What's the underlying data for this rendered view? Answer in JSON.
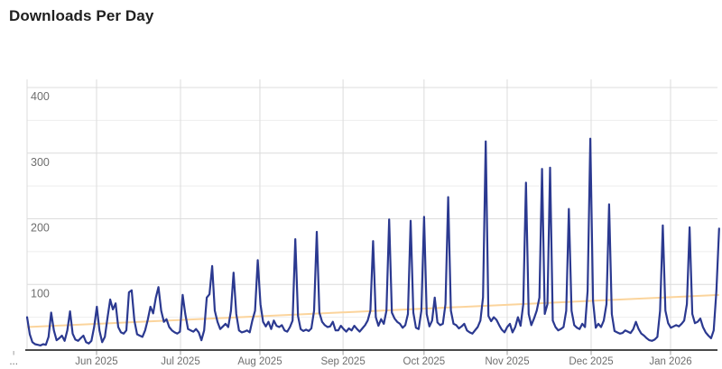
{
  "chart_data": {
    "type": "line",
    "title": "Downloads Per Day",
    "xlabel": "",
    "ylabel": "",
    "grid": true,
    "legend": "none",
    "ylim": [
      0,
      412
    ],
    "y_major_ticks": [
      100,
      200,
      300,
      400
    ],
    "y_minor_ticks": [
      50,
      150,
      250,
      350
    ],
    "x_ticks": [
      {
        "label": "...",
        "day": -5.0,
        "gridline": false
      },
      {
        "label": "Jun 2025",
        "day": 25.9,
        "gridline": true
      },
      {
        "label": "Jul 2025",
        "day": 57.2,
        "gridline": true
      },
      {
        "label": "Aug 2025",
        "day": 86.8,
        "gridline": true
      },
      {
        "label": "Sep 2025",
        "day": 117.8,
        "gridline": true
      },
      {
        "label": "Oct 2025",
        "day": 148.0,
        "gridline": true
      },
      {
        "label": "Nov 2025",
        "day": 179.0,
        "gridline": true
      },
      {
        "label": "Dec 2025",
        "day": 210.3,
        "gridline": true
      },
      {
        "label": "Jan 2026",
        "day": 239.9,
        "gridline": true
      }
    ],
    "series": [
      {
        "name": "downloads-per-day",
        "color": "#2b3990",
        "values": [
          50,
          24,
          12,
          9,
          8,
          7,
          9,
          8,
          20,
          57,
          30,
          15,
          18,
          22,
          14,
          30,
          59,
          25,
          16,
          14,
          18,
          22,
          12,
          10,
          14,
          35,
          66,
          30,
          12,
          20,
          50,
          77,
          62,
          71,
          35,
          27,
          25,
          30,
          88,
          91,
          45,
          24,
          22,
          20,
          30,
          46,
          66,
          56,
          80,
          96,
          60,
          43,
          47,
          35,
          30,
          27,
          25,
          28,
          84,
          55,
          32,
          30,
          28,
          32,
          27,
          15,
          30,
          80,
          85,
          128,
          60,
          43,
          32,
          36,
          40,
          35,
          60,
          118,
          55,
          30,
          27,
          28,
          30,
          27,
          45,
          60,
          137,
          70,
          43,
          36,
          43,
          32,
          45,
          37,
          35,
          38,
          30,
          28,
          35,
          45,
          169,
          52,
          32,
          29,
          31,
          29,
          33,
          60,
          180,
          57,
          43,
          38,
          35,
          36,
          43,
          30,
          30,
          37,
          32,
          28,
          33,
          30,
          37,
          32,
          28,
          33,
          38,
          45,
          60,
          166,
          50,
          37,
          47,
          40,
          60,
          199,
          57,
          48,
          43,
          40,
          34,
          38,
          55,
          197,
          57,
          34,
          32,
          60,
          203,
          55,
          36,
          45,
          80,
          42,
          38,
          40,
          70,
          233,
          60,
          40,
          38,
          33,
          36,
          40,
          30,
          27,
          25,
          30,
          35,
          45,
          80,
          318,
          52,
          44,
          50,
          46,
          38,
          31,
          27,
          35,
          40,
          27,
          35,
          50,
          37,
          70,
          255,
          55,
          38,
          48,
          60,
          80,
          276,
          55,
          70,
          278,
          45,
          35,
          30,
          32,
          35,
          60,
          215,
          60,
          38,
          34,
          32,
          40,
          35,
          90,
          322,
          75,
          34,
          40,
          35,
          45,
          70,
          222,
          55,
          29,
          27,
          25,
          26,
          30,
          28,
          26,
          32,
          43,
          32,
          25,
          22,
          18,
          15,
          14,
          16,
          20,
          60,
          190,
          60,
          41,
          34,
          36,
          38,
          36,
          40,
          45,
          70,
          187,
          55,
          41,
          43,
          48,
          35,
          27,
          22,
          18,
          30,
          90,
          185
        ]
      },
      {
        "name": "trend",
        "color": "#fbd49c",
        "trend_start": 35,
        "trend_end": 84
      }
    ],
    "colors": {
      "major_gridline": "#dcdcdc",
      "minor_gridline": "#eeeeee",
      "axis_line": "#4a4a4a",
      "tick_mark": "#9e9e9e",
      "axis_label": "#6e6e6e",
      "title": "#1f1f1f",
      "background": "#ffffff"
    }
  }
}
